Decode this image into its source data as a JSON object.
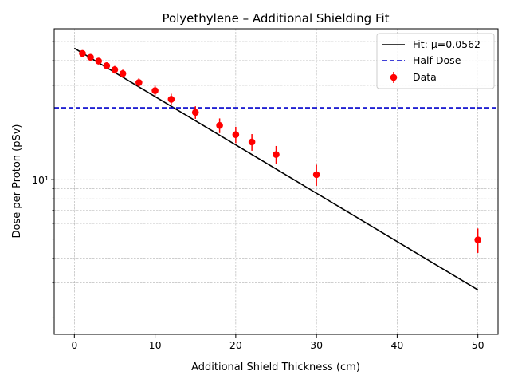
{
  "chart_data": {
    "type": "scatter",
    "title": "Polyethylene – Additional Shielding Fit",
    "xlabel": "Additional Shield Thickness (cm)",
    "ylabel": "Dose per Proton (pSv)",
    "xlim": [
      -2.5,
      52.5
    ],
    "ylim": [
      1.65,
      58
    ],
    "yscale": "log",
    "xticks": [
      0,
      10,
      20,
      30,
      40,
      50
    ],
    "xtick_labels": [
      "0",
      "10",
      "20",
      "30",
      "40",
      "50"
    ],
    "ytick_labels": [
      "10¹"
    ],
    "grid": true,
    "legend_position": "top-right",
    "series": [
      {
        "name": "Fit: μ=0.0562",
        "kind": "line",
        "color": "#000000",
        "x": [
          0,
          50
        ],
        "y": [
          46.2,
          2.77
        ]
      },
      {
        "name": "Half Dose",
        "kind": "hline",
        "color": "#0000cc",
        "y": 23.1
      },
      {
        "name": "Data",
        "kind": "errorbar",
        "color": "#ff0000",
        "x": [
          1,
          2,
          3,
          4,
          5,
          6,
          8,
          10,
          12,
          15,
          18,
          20,
          22,
          25,
          30,
          50
        ],
        "y": [
          43.5,
          41.6,
          39.8,
          37.7,
          36.0,
          34.4,
          31.0,
          28.2,
          25.5,
          21.9,
          18.8,
          16.9,
          15.5,
          13.4,
          10.6,
          4.96
        ],
        "yerr": [
          1.6,
          1.5,
          1.5,
          1.5,
          1.6,
          1.6,
          1.6,
          1.7,
          1.7,
          1.6,
          1.6,
          1.6,
          1.5,
          1.4,
          1.3,
          0.7
        ]
      }
    ]
  }
}
